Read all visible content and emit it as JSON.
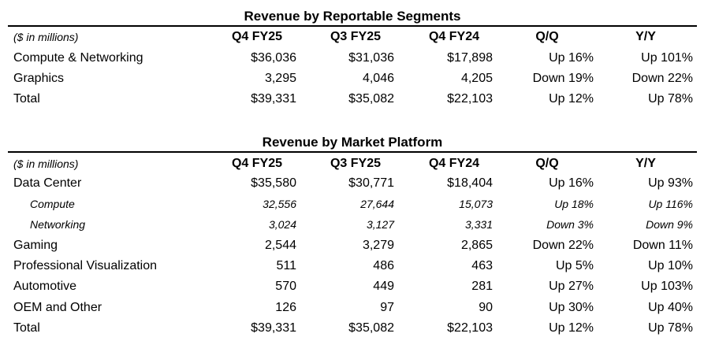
{
  "segments": {
    "title": "Revenue by Reportable Segments",
    "header": [
      "($ in millions)",
      "Q4 FY25",
      "Q3 FY25",
      "Q4 FY24",
      "Q/Q",
      "Y/Y"
    ],
    "rows": [
      [
        "Compute & Networking",
        "$36,036",
        "$31,036",
        "$17,898",
        "Up 16%",
        "Up 101%"
      ],
      [
        "Graphics",
        "3,295",
        "4,046",
        "4,205",
        "Down 19%",
        "Down 22%"
      ],
      [
        "Total",
        "$39,331",
        "$35,082",
        "$22,103",
        "Up 12%",
        "Up 78%"
      ]
    ]
  },
  "platform": {
    "title": "Revenue by Market Platform",
    "header": [
      "($ in millions)",
      "Q4 FY25",
      "Q3 FY25",
      "Q4 FY24",
      "Q/Q",
      "Y/Y"
    ],
    "rows": [
      [
        "Data Center",
        "$35,580",
        "$30,771",
        "$18,404",
        "Up 16%",
        "Up 93%"
      ],
      [
        "Compute",
        "32,556",
        "27,644",
        "15,073",
        "Up 18%",
        "Up 116%"
      ],
      [
        "Networking",
        "3,024",
        "3,127",
        "3,331",
        "Down 3%",
        "Down 9%"
      ],
      [
        "Gaming",
        "2,544",
        "3,279",
        "2,865",
        "Down 22%",
        "Down 11%"
      ],
      [
        "Professional Visualization",
        "511",
        "486",
        "463",
        "Up 5%",
        "Up 10%"
      ],
      [
        "Automotive",
        "570",
        "449",
        "281",
        "Up 27%",
        "Up 103%"
      ],
      [
        "OEM and Other",
        "126",
        "97",
        "90",
        "Up 30%",
        "Up 40%"
      ],
      [
        "Total",
        "$39,331",
        "$35,082",
        "$22,103",
        "Up 12%",
        "Up 78%"
      ]
    ]
  }
}
